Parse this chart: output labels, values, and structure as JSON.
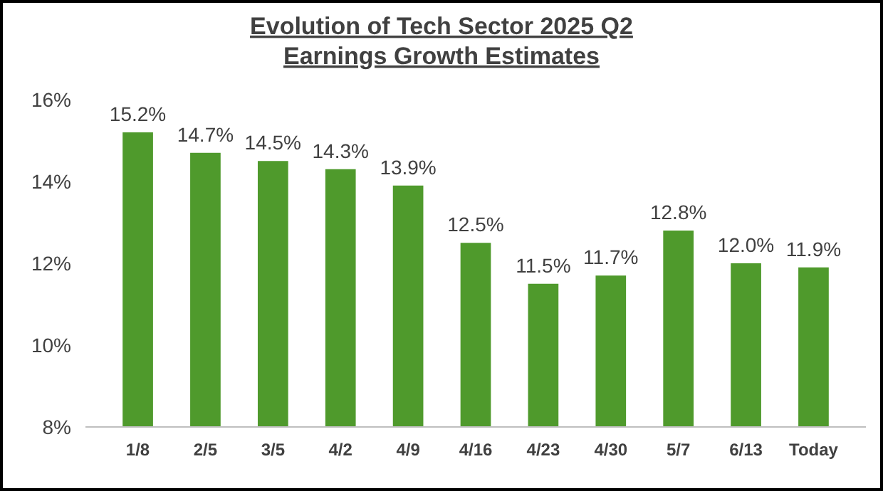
{
  "chart_data": {
    "type": "bar",
    "title": "Evolution of Tech Sector 2025 Q2\nEarnings Growth Estimates",
    "categories": [
      "1/8",
      "2/5",
      "3/5",
      "4/2",
      "4/9",
      "4/16",
      "4/23",
      "4/30",
      "5/7",
      "6/13",
      "Today"
    ],
    "values": [
      15.2,
      14.7,
      14.5,
      14.3,
      13.9,
      12.5,
      11.5,
      11.7,
      12.8,
      12.0,
      11.9
    ],
    "value_labels": [
      "15.2%",
      "14.7%",
      "14.5%",
      "14.3%",
      "13.9%",
      "12.5%",
      "11.5%",
      "11.7%",
      "12.8%",
      "12.0%",
      "11.9%"
    ],
    "color": "#4f9a2c",
    "ylim": [
      8,
      16
    ],
    "yticks": [
      {
        "value": 8,
        "label": "8%"
      },
      {
        "value": 10,
        "label": "10%"
      },
      {
        "value": 12,
        "label": "12%"
      },
      {
        "value": 14,
        "label": "14%"
      },
      {
        "value": 16,
        "label": "16%"
      }
    ],
    "grid": false
  }
}
